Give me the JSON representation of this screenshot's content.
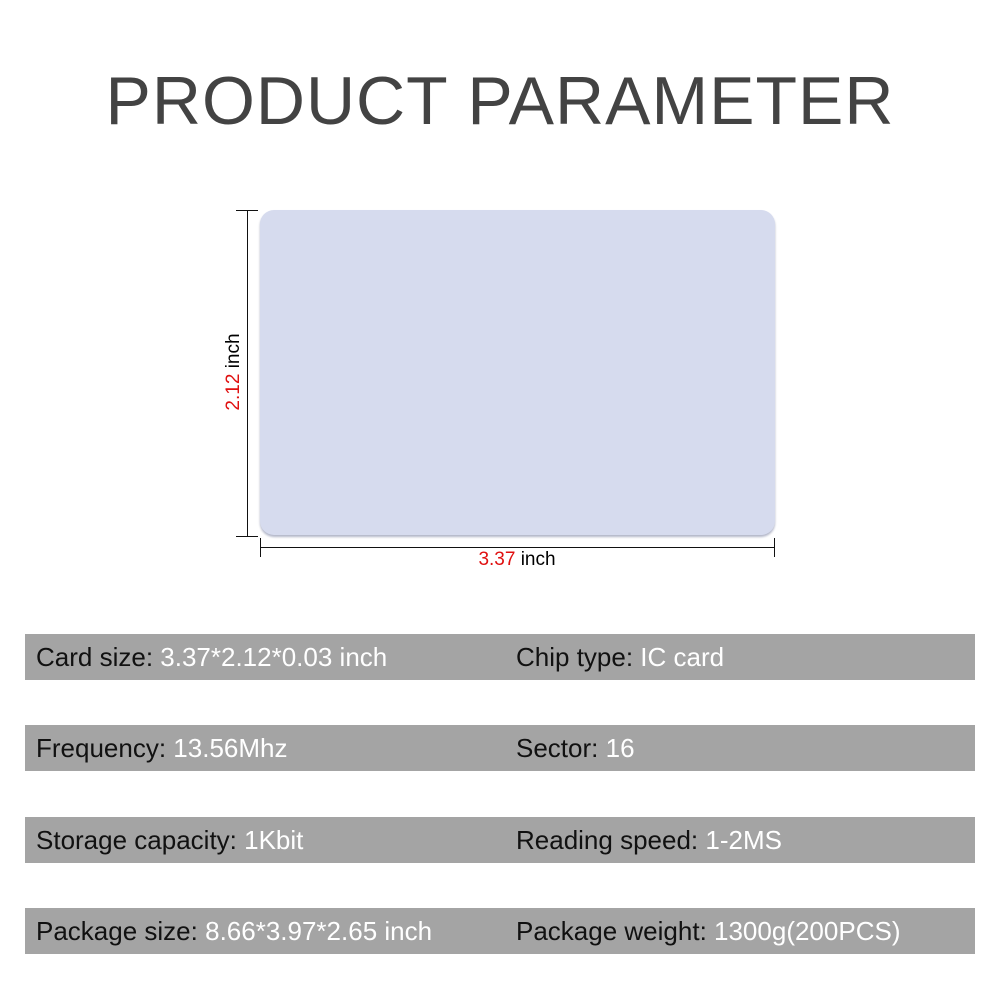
{
  "title": "PRODUCT PARAMETER",
  "card": {
    "color": "#d6dbee",
    "height_value": "2.12",
    "width_value": "3.37",
    "unit": "inch"
  },
  "params": [
    [
      {
        "label": "Card size",
        "value": "3.37*2.12*0.03 inch"
      },
      {
        "label": "Chip type",
        "value": "IC card"
      }
    ],
    [
      {
        "label": "Frequency",
        "value": "13.56Mhz"
      },
      {
        "label": "Sector",
        "value": "16"
      }
    ],
    [
      {
        "label": "Storage capacity",
        "value": "1Kbit"
      },
      {
        "label": "Reading speed",
        "value": "1-2MS"
      }
    ],
    [
      {
        "label": "Package size",
        "value": "8.66*3.97*2.65 inch"
      },
      {
        "label": "Package weight",
        "value": "1300g(200PCS)"
      }
    ]
  ]
}
